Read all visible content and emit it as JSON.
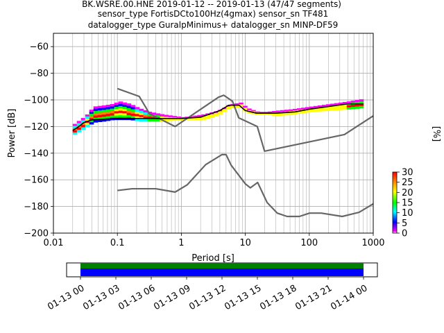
{
  "title": {
    "line1": "BK.WSRE.00.HNE   2019-01-12 -- 2019-01-13  (47/47 segments)",
    "line2": "sensor_type FortisDCto100Hz(4gmax) sensor_sn TF481",
    "line3": "datalogger_type GuralpMinimus+ datalogger_sn MINP-DF59"
  },
  "colorbar": {
    "label": "[%]",
    "ticks": [
      "0",
      "5",
      "10",
      "15",
      "20",
      "25",
      "30"
    ],
    "range": [
      0,
      30
    ]
  },
  "timeline": {
    "ticks": [
      "01-13 00",
      "01-13 03",
      "01-13 06",
      "01-13 09",
      "01-13 12",
      "01-13 15",
      "01-13 18",
      "01-13 21",
      "01-14 00"
    ],
    "coverage_color": "#008000",
    "segment_color": "#0000ff"
  },
  "chart_data": {
    "type": "line",
    "xlabel": "Period [s]",
    "ylabel": "Power [dB]",
    "xscale": "log",
    "xlim": [
      0.01,
      1000
    ],
    "ylim": [
      -200,
      -50
    ],
    "xticks": [
      0.01,
      0.1,
      1,
      10,
      100,
      1000
    ],
    "xtick_labels": [
      "0.01",
      "0.1",
      "1",
      "10",
      "100",
      "1000"
    ],
    "yticks": [
      -200,
      -180,
      -160,
      -140,
      -120,
      -100,
      -80,
      -60
    ],
    "ytick_labels": [
      "−200",
      "−180",
      "−160",
      "−140",
      "−120",
      "−100",
      "−80",
      "−60"
    ],
    "grid": true,
    "series": [
      {
        "role": "noise-model-high",
        "color": "#666666",
        "x": [
          0.1,
          0.22,
          0.32,
          0.8,
          3.8,
          4.6,
          6.3,
          7.9,
          15.4,
          20,
          354.8,
          1000
        ],
        "y": [
          -91.5,
          -97.4,
          -110.5,
          -120,
          -98,
          -96.5,
          -101,
          -113.5,
          -120,
          -138.5,
          -126,
          -112
        ]
      },
      {
        "role": "noise-model-low",
        "color": "#666666",
        "x": [
          0.1,
          0.17,
          0.4,
          0.8,
          1.24,
          2.4,
          4.3,
          5,
          6,
          10,
          12,
          15.6,
          21.9,
          31.6,
          45,
          70,
          101,
          154,
          328,
          600,
          1000
        ],
        "y": [
          -168,
          -166.7,
          -166.7,
          -169.2,
          -163.7,
          -148.6,
          -141.1,
          -141.1,
          -149,
          -163,
          -166,
          -162,
          -177,
          -185,
          -187.5,
          -187.5,
          -185,
          -185,
          -187.5,
          -184.4,
          -178
        ]
      },
      {
        "role": "mode-curve",
        "color": "#000000",
        "x": [
          0.02,
          0.025,
          0.03,
          0.04,
          0.06,
          0.1,
          0.2,
          0.5,
          1,
          2,
          4,
          5.5,
          8,
          10,
          15,
          30,
          60,
          100,
          200,
          400,
          700
        ],
        "y": [
          -123,
          -120,
          -117,
          -115,
          -114.5,
          -114,
          -114,
          -114,
          -114,
          -113,
          -108,
          -104,
          -104,
          -108,
          -110,
          -110,
          -109,
          -107,
          -105,
          -103,
          -103
        ]
      }
    ],
    "density_band": {
      "colorscale": "pqlx",
      "x": [
        0.02,
        0.03,
        0.04,
        0.06,
        0.08,
        0.1,
        0.15,
        0.2,
        0.3,
        0.5,
        1,
        2,
        3,
        4,
        5,
        6,
        8,
        10,
        15,
        20,
        30,
        50,
        100,
        200,
        400,
        700
      ],
      "upper": [
        -118,
        -112,
        -105,
        -104,
        -103,
        -101,
        -103,
        -106,
        -109,
        -111,
        -113,
        -111,
        -109,
        -107,
        -104,
        -103,
        -102,
        -106,
        -109,
        -109,
        -108,
        -107,
        -105,
        -103,
        -101,
        -99
      ],
      "lower": [
        -126,
        -121,
        -117,
        -116,
        -115,
        -115,
        -115,
        -116,
        -116,
        -116,
        -115,
        -115,
        -113,
        -110,
        -107,
        -106,
        -106,
        -110,
        -111,
        -111,
        -112,
        -111,
        -109,
        -108,
        -107,
        -106
      ]
    }
  }
}
